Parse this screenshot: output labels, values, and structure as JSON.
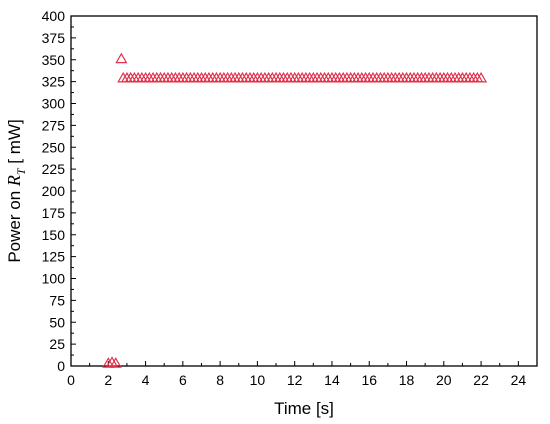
{
  "chart_data": {
    "type": "scatter",
    "xlabel": "Time [s]",
    "ylabel": {
      "prefix": "Power on ",
      "symbol": "R",
      "subscript": "T",
      "suffix": " [ mW]"
    },
    "xlim": [
      0,
      25
    ],
    "ylim": [
      0,
      400
    ],
    "xticks": [
      0,
      2,
      4,
      6,
      8,
      10,
      12,
      14,
      16,
      18,
      20,
      22,
      24
    ],
    "yticks": [
      0,
      25,
      50,
      75,
      100,
      125,
      150,
      175,
      200,
      225,
      250,
      275,
      300,
      325,
      350,
      375,
      400
    ],
    "grid": false,
    "marker": "open-triangle",
    "color": "#e0304a",
    "series": [
      {
        "x": [
          2.0,
          2.2,
          2.4,
          2.7,
          2.8,
          3.0,
          3.2,
          3.4,
          3.6,
          3.8,
          4.0,
          4.2,
          4.4,
          4.6,
          4.8,
          5.0,
          5.2,
          5.4,
          5.6,
          5.8,
          6.0,
          6.2,
          6.4,
          6.6,
          6.8,
          7.0,
          7.2,
          7.4,
          7.6,
          7.8,
          8.0,
          8.2,
          8.4,
          8.6,
          8.8,
          9.0,
          9.2,
          9.4,
          9.6,
          9.8,
          10.0,
          10.2,
          10.4,
          10.6,
          10.8,
          11.0,
          11.2,
          11.4,
          11.6,
          11.8,
          12.0,
          12.2,
          12.4,
          12.6,
          12.8,
          13.0,
          13.2,
          13.4,
          13.6,
          13.8,
          14.0,
          14.2,
          14.4,
          14.6,
          14.8,
          15.0,
          15.2,
          15.4,
          15.6,
          15.8,
          16.0,
          16.2,
          16.4,
          16.6,
          16.8,
          17.0,
          17.2,
          17.4,
          17.6,
          17.8,
          18.0,
          18.2,
          18.4,
          18.6,
          18.8,
          19.0,
          19.2,
          19.4,
          19.6,
          19.8,
          20.0,
          20.2,
          20.4,
          20.6,
          20.8,
          21.0,
          21.2,
          21.4,
          21.6,
          21.8,
          22.0
        ],
        "y": [
          3,
          4,
          3,
          351,
          329,
          329,
          329,
          329,
          329,
          329,
          329,
          329,
          329,
          329,
          329,
          329,
          329,
          329,
          329,
          329,
          329,
          329,
          329,
          329,
          329,
          329,
          329,
          329,
          329,
          329,
          329,
          329,
          329,
          329,
          329,
          329,
          329,
          329,
          329,
          329,
          329,
          329,
          329,
          329,
          329,
          329,
          329,
          329,
          329,
          329,
          329,
          329,
          329,
          329,
          329,
          329,
          329,
          329,
          329,
          329,
          329,
          329,
          329,
          329,
          329,
          329,
          329,
          329,
          329,
          329,
          329,
          329,
          329,
          329,
          329,
          329,
          329,
          329,
          329,
          329,
          329,
          329,
          329,
          329,
          329,
          329,
          329,
          329,
          329,
          329,
          329,
          329,
          329,
          329,
          329,
          329,
          329,
          329,
          329,
          329,
          329
        ]
      }
    ]
  }
}
